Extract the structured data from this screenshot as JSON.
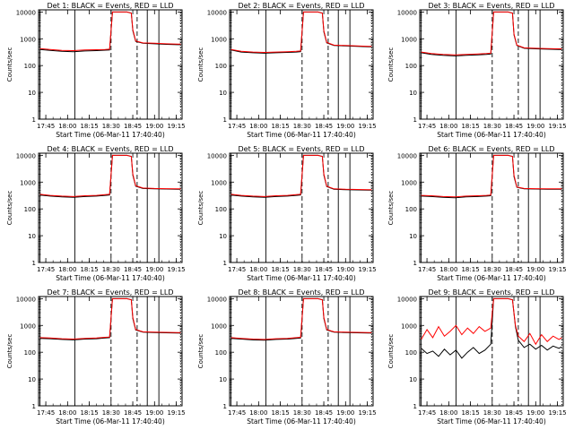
{
  "style": {
    "events_color": "#000000",
    "lld_color": "#ff0000",
    "background": "#ffffff"
  },
  "shared_axes": {
    "x_tick_labels": [
      "17:45",
      "18:00",
      "18:15",
      "18:30",
      "18:45",
      "19:00",
      "19:15"
    ],
    "y_tick_labels": [
      "1",
      "10",
      "100",
      "1000",
      "10000"
    ],
    "xlabel": "Start Time (06-Mar-11 17:40:40)",
    "ylabel": "Counts/sec",
    "y_scale": "log",
    "ylim": [
      1,
      12000
    ],
    "xlim_minutes_after_1740": [
      0,
      99
    ]
  },
  "chart_data": [
    {
      "type": "line",
      "title": "Det 1: BLACK = Events, RED = LLD",
      "x": [
        "17:41",
        "17:48",
        "17:56",
        "18:04",
        "18:12",
        "18:20",
        "18:26",
        "18:29",
        "18:31",
        "18:36",
        "18:39",
        "18:41",
        "18:44",
        "18:45",
        "18:47",
        "18:52",
        "19:00",
        "19:08",
        "19:16",
        "19:18"
      ],
      "series": [
        {
          "name": "Events",
          "values": [
            400,
            370,
            340,
            330,
            350,
            360,
            375,
            380,
            10000,
            10000,
            10000,
            10000,
            9000,
            2000,
            800,
            680,
            650,
            620,
            600,
            600
          ]
        },
        {
          "name": "LLD",
          "values": [
            430,
            400,
            370,
            360,
            380,
            390,
            400,
            410,
            10000,
            10000,
            10000,
            10000,
            9000,
            2200,
            830,
            700,
            680,
            650,
            630,
            630
          ]
        }
      ],
      "vlines_solid": [
        "17:41",
        "18:05",
        "18:55",
        "19:03"
      ],
      "vlines_dashed": [
        "18:30",
        "18:48"
      ],
      "vlines_dotted": [
        "19:18"
      ]
    },
    {
      "type": "line",
      "title": "Det 2: BLACK = Events, RED = LLD",
      "x": [
        "17:41",
        "17:48",
        "17:56",
        "18:04",
        "18:12",
        "18:20",
        "18:26",
        "18:29",
        "18:31",
        "18:36",
        "18:39",
        "18:41",
        "18:44",
        "18:45",
        "18:47",
        "18:52",
        "19:00",
        "19:08",
        "19:16",
        "19:18"
      ],
      "series": [
        {
          "name": "Events",
          "values": [
            380,
            320,
            300,
            290,
            300,
            310,
            320,
            330,
            10000,
            10000,
            10000,
            10000,
            9000,
            1800,
            700,
            560,
            540,
            520,
            500,
            500
          ]
        },
        {
          "name": "LLD",
          "values": [
            400,
            340,
            320,
            310,
            320,
            330,
            340,
            350,
            10000,
            10000,
            10000,
            10000,
            9000,
            2000,
            730,
            580,
            560,
            540,
            520,
            520
          ]
        }
      ],
      "vlines_solid": [
        "17:41",
        "18:05",
        "18:55",
        "19:03"
      ],
      "vlines_dashed": [
        "18:30",
        "18:48"
      ],
      "vlines_dotted": [
        "19:18"
      ]
    },
    {
      "type": "line",
      "title": "Det 3: BLACK = Events, RED = LLD",
      "x": [
        "17:41",
        "17:48",
        "17:56",
        "18:04",
        "18:12",
        "18:20",
        "18:26",
        "18:29",
        "18:31",
        "18:36",
        "18:39",
        "18:41",
        "18:44",
        "18:45",
        "18:47",
        "18:52",
        "19:00",
        "19:08",
        "19:16",
        "19:18"
      ],
      "series": [
        {
          "name": "Events",
          "values": [
            300,
            260,
            240,
            230,
            240,
            250,
            260,
            270,
            10000,
            10000,
            10000,
            10000,
            9000,
            1400,
            560,
            440,
            420,
            410,
            400,
            400
          ]
        },
        {
          "name": "LLD",
          "values": [
            320,
            280,
            260,
            250,
            260,
            270,
            280,
            290,
            10000,
            10000,
            10000,
            10000,
            9000,
            1500,
            580,
            460,
            440,
            430,
            420,
            420
          ]
        }
      ],
      "vlines_solid": [
        "17:41",
        "18:05",
        "18:55",
        "19:03"
      ],
      "vlines_dashed": [
        "18:30",
        "18:48"
      ],
      "vlines_dotted": [
        "19:18"
      ]
    },
    {
      "type": "line",
      "title": "Det 4: BLACK = Events, RED = LLD",
      "x": [
        "17:41",
        "17:48",
        "17:56",
        "18:04",
        "18:12",
        "18:20",
        "18:26",
        "18:29",
        "18:31",
        "18:36",
        "18:39",
        "18:41",
        "18:44",
        "18:45",
        "18:47",
        "18:52",
        "19:00",
        "19:08",
        "19:16",
        "19:18"
      ],
      "series": [
        {
          "name": "Events",
          "values": [
            330,
            300,
            280,
            270,
            290,
            300,
            320,
            330,
            10000,
            10000,
            10000,
            10000,
            9000,
            1800,
            700,
            580,
            560,
            550,
            540,
            540
          ]
        },
        {
          "name": "LLD",
          "values": [
            350,
            320,
            300,
            290,
            310,
            320,
            340,
            350,
            10000,
            10000,
            10000,
            10000,
            9000,
            2000,
            730,
            600,
            580,
            570,
            560,
            560
          ]
        }
      ],
      "vlines_solid": [
        "17:41",
        "18:05",
        "18:55",
        "19:03"
      ],
      "vlines_dashed": [
        "18:30",
        "18:48"
      ],
      "vlines_dotted": [
        "19:18"
      ]
    },
    {
      "type": "line",
      "title": "Det 5: BLACK = Events, RED = LLD",
      "x": [
        "17:41",
        "17:48",
        "17:56",
        "18:04",
        "18:12",
        "18:20",
        "18:26",
        "18:29",
        "18:31",
        "18:36",
        "18:39",
        "18:41",
        "18:44",
        "18:45",
        "18:47",
        "18:52",
        "19:00",
        "19:08",
        "19:16",
        "19:18"
      ],
      "series": [
        {
          "name": "Events",
          "values": [
            330,
            300,
            280,
            270,
            290,
            300,
            320,
            330,
            10000,
            10000,
            10000,
            10000,
            9000,
            1800,
            680,
            540,
            520,
            510,
            500,
            500
          ]
        },
        {
          "name": "LLD",
          "values": [
            350,
            320,
            300,
            290,
            310,
            320,
            340,
            350,
            10000,
            10000,
            10000,
            10000,
            9000,
            2000,
            700,
            560,
            540,
            530,
            520,
            520
          ]
        }
      ],
      "vlines_solid": [
        "17:41",
        "18:05",
        "18:55",
        "19:03"
      ],
      "vlines_dashed": [
        "18:30",
        "18:48"
      ],
      "vlines_dotted": [
        "19:18"
      ]
    },
    {
      "type": "line",
      "title": "Det 6: BLACK = Events, RED = LLD",
      "x": [
        "17:41",
        "17:48",
        "17:56",
        "18:04",
        "18:12",
        "18:20",
        "18:26",
        "18:29",
        "18:31",
        "18:36",
        "18:39",
        "18:41",
        "18:44",
        "18:45",
        "18:47",
        "18:52",
        "19:00",
        "19:08",
        "19:16",
        "19:18"
      ],
      "series": [
        {
          "name": "Events",
          "values": [
            300,
            290,
            270,
            260,
            280,
            290,
            300,
            310,
            10000,
            10000,
            10000,
            10000,
            9000,
            1600,
            640,
            560,
            550,
            540,
            540,
            540
          ]
        },
        {
          "name": "LLD",
          "values": [
            320,
            310,
            290,
            280,
            300,
            310,
            320,
            330,
            10000,
            10000,
            10000,
            10000,
            9000,
            1800,
            660,
            580,
            570,
            560,
            560,
            560
          ]
        }
      ],
      "vlines_solid": [
        "17:41",
        "18:05",
        "18:55",
        "19:03"
      ],
      "vlines_dashed": [
        "18:30",
        "18:48"
      ],
      "vlines_dotted": [
        "19:18"
      ]
    },
    {
      "type": "line",
      "title": "Det 7: BLACK = Events, RED = LLD",
      "x": [
        "17:41",
        "17:48",
        "17:56",
        "18:04",
        "18:12",
        "18:20",
        "18:26",
        "18:29",
        "18:31",
        "18:36",
        "18:39",
        "18:41",
        "18:44",
        "18:45",
        "18:47",
        "18:52",
        "19:00",
        "19:08",
        "19:16",
        "19:18"
      ],
      "series": [
        {
          "name": "Events",
          "values": [
            330,
            320,
            300,
            290,
            310,
            320,
            340,
            350,
            10000,
            10000,
            10000,
            10000,
            9000,
            1800,
            680,
            560,
            540,
            530,
            520,
            520
          ]
        },
        {
          "name": "LLD",
          "values": [
            350,
            340,
            320,
            310,
            330,
            340,
            360,
            370,
            10000,
            10000,
            10000,
            10000,
            9000,
            2000,
            700,
            580,
            560,
            550,
            540,
            540
          ]
        }
      ],
      "vlines_solid": [
        "17:41",
        "18:05",
        "18:55",
        "19:03"
      ],
      "vlines_dashed": [
        "18:30",
        "18:48"
      ],
      "vlines_dotted": [
        "19:18"
      ]
    },
    {
      "type": "line",
      "title": "Det 8: BLACK = Events, RED = LLD",
      "x": [
        "17:41",
        "17:48",
        "17:56",
        "18:04",
        "18:12",
        "18:20",
        "18:26",
        "18:29",
        "18:31",
        "18:36",
        "18:39",
        "18:41",
        "18:44",
        "18:45",
        "18:47",
        "18:52",
        "19:00",
        "19:08",
        "19:16",
        "19:18"
      ],
      "series": [
        {
          "name": "Events",
          "values": [
            330,
            310,
            290,
            280,
            300,
            310,
            330,
            340,
            10000,
            10000,
            10000,
            10000,
            9000,
            1800,
            680,
            560,
            540,
            530,
            520,
            520
          ]
        },
        {
          "name": "LLD",
          "values": [
            350,
            330,
            310,
            300,
            320,
            330,
            350,
            360,
            10000,
            10000,
            10000,
            10000,
            9000,
            2000,
            700,
            580,
            560,
            550,
            540,
            540
          ]
        }
      ],
      "vlines_solid": [
        "17:41",
        "18:05",
        "18:55",
        "19:03"
      ],
      "vlines_dashed": [
        "18:30",
        "18:48"
      ],
      "vlines_dotted": [
        "19:18"
      ]
    },
    {
      "type": "line",
      "title": "Det 9: BLACK = Events, RED = LLD",
      "x": [
        "17:41",
        "17:45",
        "17:49",
        "17:53",
        "17:57",
        "18:01",
        "18:05",
        "18:09",
        "18:13",
        "18:17",
        "18:21",
        "18:25",
        "18:29",
        "18:31",
        "18:36",
        "18:39",
        "18:41",
        "18:44",
        "18:46",
        "18:48",
        "18:52",
        "18:56",
        "19:00",
        "19:04",
        "19:08",
        "19:12",
        "19:16",
        "19:18"
      ],
      "series": [
        {
          "name": "Events",
          "values": [
            140,
            90,
            110,
            70,
            130,
            80,
            120,
            60,
            100,
            150,
            90,
            120,
            200,
            10000,
            10000,
            10000,
            10000,
            9000,
            900,
            280,
            150,
            200,
            130,
            180,
            120,
            170,
            140,
            160
          ]
        },
        {
          "name": "LLD",
          "values": [
            300,
            700,
            350,
            900,
            400,
            600,
            1000,
            450,
            800,
            500,
            900,
            600,
            800,
            10000,
            10000,
            10000,
            10000,
            9000,
            1000,
            400,
            250,
            500,
            200,
            450,
            250,
            400,
            300,
            350
          ]
        }
      ],
      "vlines_solid": [
        "17:41",
        "18:05",
        "18:55",
        "19:03"
      ],
      "vlines_dashed": [
        "18:30",
        "18:48"
      ],
      "vlines_dotted": [
        "19:18"
      ]
    }
  ]
}
